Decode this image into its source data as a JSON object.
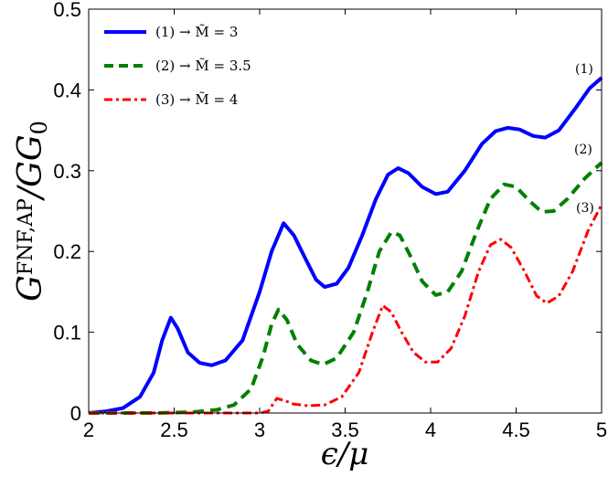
{
  "chart_data": {
    "type": "line",
    "xlabel": "ϵ/μ",
    "ylabel": "G^{FNF,AP}/G_0",
    "xlim": [
      2,
      5
    ],
    "ylim": [
      0,
      0.5
    ],
    "x_ticks": [
      "2",
      "2.5",
      "3",
      "3.5",
      "4",
      "4.5",
      "5"
    ],
    "y_ticks": [
      "0",
      "0.1",
      "0.2",
      "0.3",
      "0.4",
      "0.5"
    ],
    "grid": false,
    "legend_position": "top-left",
    "series": [
      {
        "name": "(1) → M̃ = 3",
        "label": "(1)",
        "color": "#0000ff",
        "dash": "solid",
        "points": [
          [
            2.0,
            0.0
          ],
          [
            2.1,
            0.002
          ],
          [
            2.2,
            0.006
          ],
          [
            2.3,
            0.02
          ],
          [
            2.38,
            0.05
          ],
          [
            2.43,
            0.09
          ],
          [
            2.48,
            0.118
          ],
          [
            2.52,
            0.105
          ],
          [
            2.58,
            0.075
          ],
          [
            2.65,
            0.062
          ],
          [
            2.72,
            0.059
          ],
          [
            2.8,
            0.065
          ],
          [
            2.9,
            0.09
          ],
          [
            3.0,
            0.15
          ],
          [
            3.07,
            0.2
          ],
          [
            3.14,
            0.235
          ],
          [
            3.2,
            0.22
          ],
          [
            3.27,
            0.19
          ],
          [
            3.33,
            0.165
          ],
          [
            3.38,
            0.156
          ],
          [
            3.45,
            0.16
          ],
          [
            3.52,
            0.18
          ],
          [
            3.6,
            0.22
          ],
          [
            3.68,
            0.265
          ],
          [
            3.75,
            0.295
          ],
          [
            3.81,
            0.303
          ],
          [
            3.87,
            0.297
          ],
          [
            3.95,
            0.28
          ],
          [
            4.03,
            0.271
          ],
          [
            4.1,
            0.274
          ],
          [
            4.2,
            0.3
          ],
          [
            4.3,
            0.333
          ],
          [
            4.38,
            0.349
          ],
          [
            4.45,
            0.353
          ],
          [
            4.52,
            0.351
          ],
          [
            4.6,
            0.343
          ],
          [
            4.67,
            0.341
          ],
          [
            4.75,
            0.35
          ],
          [
            4.85,
            0.378
          ],
          [
            4.93,
            0.402
          ],
          [
            5.0,
            0.415
          ]
        ]
      },
      {
        "name": "(2) → M̃ = 3.5",
        "label": "(2)",
        "color": "#008000",
        "dash": "dashed",
        "points": [
          [
            2.0,
            0.0
          ],
          [
            2.4,
            0.0
          ],
          [
            2.6,
            0.001
          ],
          [
            2.75,
            0.004
          ],
          [
            2.85,
            0.01
          ],
          [
            2.95,
            0.03
          ],
          [
            3.02,
            0.07
          ],
          [
            3.07,
            0.11
          ],
          [
            3.11,
            0.128
          ],
          [
            3.16,
            0.115
          ],
          [
            3.22,
            0.085
          ],
          [
            3.3,
            0.065
          ],
          [
            3.37,
            0.06
          ],
          [
            3.45,
            0.068
          ],
          [
            3.55,
            0.1
          ],
          [
            3.63,
            0.15
          ],
          [
            3.7,
            0.2
          ],
          [
            3.77,
            0.224
          ],
          [
            3.82,
            0.22
          ],
          [
            3.88,
            0.195
          ],
          [
            3.95,
            0.163
          ],
          [
            4.03,
            0.146
          ],
          [
            4.1,
            0.15
          ],
          [
            4.18,
            0.175
          ],
          [
            4.27,
            0.225
          ],
          [
            4.35,
            0.265
          ],
          [
            4.43,
            0.283
          ],
          [
            4.5,
            0.28
          ],
          [
            4.58,
            0.262
          ],
          [
            4.65,
            0.249
          ],
          [
            4.72,
            0.25
          ],
          [
            4.8,
            0.265
          ],
          [
            4.9,
            0.29
          ],
          [
            5.0,
            0.31
          ]
        ]
      },
      {
        "name": "(3) → M̃ = 4",
        "label": "(3)",
        "color": "#ff0000",
        "dash": "dashdot",
        "points": [
          [
            2.0,
            0.0
          ],
          [
            2.5,
            0.0
          ],
          [
            3.0,
            0.0
          ],
          [
            3.05,
            0.002
          ],
          [
            3.1,
            0.018
          ],
          [
            3.15,
            0.015
          ],
          [
            3.2,
            0.011
          ],
          [
            3.28,
            0.009
          ],
          [
            3.38,
            0.01
          ],
          [
            3.48,
            0.02
          ],
          [
            3.58,
            0.05
          ],
          [
            3.66,
            0.1
          ],
          [
            3.72,
            0.133
          ],
          [
            3.77,
            0.125
          ],
          [
            3.83,
            0.1
          ],
          [
            3.9,
            0.075
          ],
          [
            3.97,
            0.063
          ],
          [
            4.04,
            0.063
          ],
          [
            4.12,
            0.08
          ],
          [
            4.2,
            0.12
          ],
          [
            4.28,
            0.175
          ],
          [
            4.35,
            0.208
          ],
          [
            4.41,
            0.215
          ],
          [
            4.47,
            0.205
          ],
          [
            4.55,
            0.175
          ],
          [
            4.62,
            0.145
          ],
          [
            4.68,
            0.136
          ],
          [
            4.75,
            0.145
          ],
          [
            4.83,
            0.175
          ],
          [
            4.92,
            0.225
          ],
          [
            5.0,
            0.258
          ]
        ]
      }
    ]
  }
}
